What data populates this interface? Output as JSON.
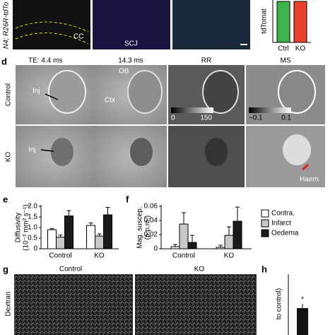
{
  "figure": {
    "top": {
      "side_label": "N4; R26R-tdTo",
      "cc": "CC",
      "scj": "SCJ",
      "bar_ylabel": "tdTomat",
      "bar_ctrl": "Ctrl",
      "bar_ko": "KO"
    },
    "d": {
      "label": "d",
      "col_te1": "TE: 4.4 ms",
      "col_te2": "14.3 ms",
      "col_rr": "RR",
      "col_ms": "MS",
      "row_control": "Control",
      "row_ko": "KO",
      "ob": "OB",
      "ctx": "Ctx",
      "inj1": "Inj",
      "inj2": "Inj",
      "rr_min": "0",
      "rr_max": "150",
      "ms_min": "−0.1",
      "ms_max": "0.1",
      "haem": "Haem."
    },
    "e": {
      "label": "e"
    },
    "f": {
      "label": "f"
    },
    "g": {
      "label": "g",
      "control": "Control",
      "ko": "KO",
      "side_label": "Dextran"
    },
    "h": {
      "label": "h",
      "star": "*",
      "ylabel": "to control)"
    }
  },
  "chart_data": [
    {
      "type": "bar",
      "ylabel": [
        "Diffusivity",
        "(10⁻³ mm² s⁻¹)"
      ],
      "categories": [
        "Control",
        "KO"
      ],
      "series": [
        {
          "color": "#ffffff",
          "values": [
            0.9,
            1.1
          ],
          "errors": [
            0.05,
            0.12
          ]
        },
        {
          "color": "#c8c8c8",
          "values": [
            0.55,
            0.6
          ],
          "errors": [
            0.1,
            0.1
          ]
        },
        {
          "color": "#1a1a1a",
          "values": [
            1.55,
            1.6
          ],
          "errors": [
            0.25,
            0.35
          ]
        }
      ],
      "ylim": [
        0,
        2
      ],
      "yticks": [
        0,
        0.5,
        {
          "value": 1,
          "label": "1.0"
        },
        1.5,
        {
          "value": 2,
          "label": "2.0"
        }
      ]
    },
    {
      "type": "bar",
      "ylabel": [
        "Mag. suscep.",
        "(p.p.m.)"
      ],
      "categories": [
        "Control",
        "KO"
      ],
      "series": [
        {
          "name": "Contra.",
          "color": "#ffffff",
          "values": [
            0.003,
            0.002
          ],
          "errors": [
            0.003,
            0.003
          ]
        },
        {
          "name": "Infarct",
          "color": "#c8c8c8",
          "values": [
            0.035,
            0.019
          ],
          "errors": [
            0.016,
            0.012
          ]
        },
        {
          "name": "Oedema",
          "color": "#1a1a1a",
          "values": [
            0.009,
            0.039
          ],
          "errors": [
            0.01,
            0.02
          ]
        }
      ],
      "ylim": [
        0,
        0.06
      ],
      "yticks": [
        0,
        0.02,
        0.04,
        0.06
      ],
      "legend": "right"
    }
  ]
}
